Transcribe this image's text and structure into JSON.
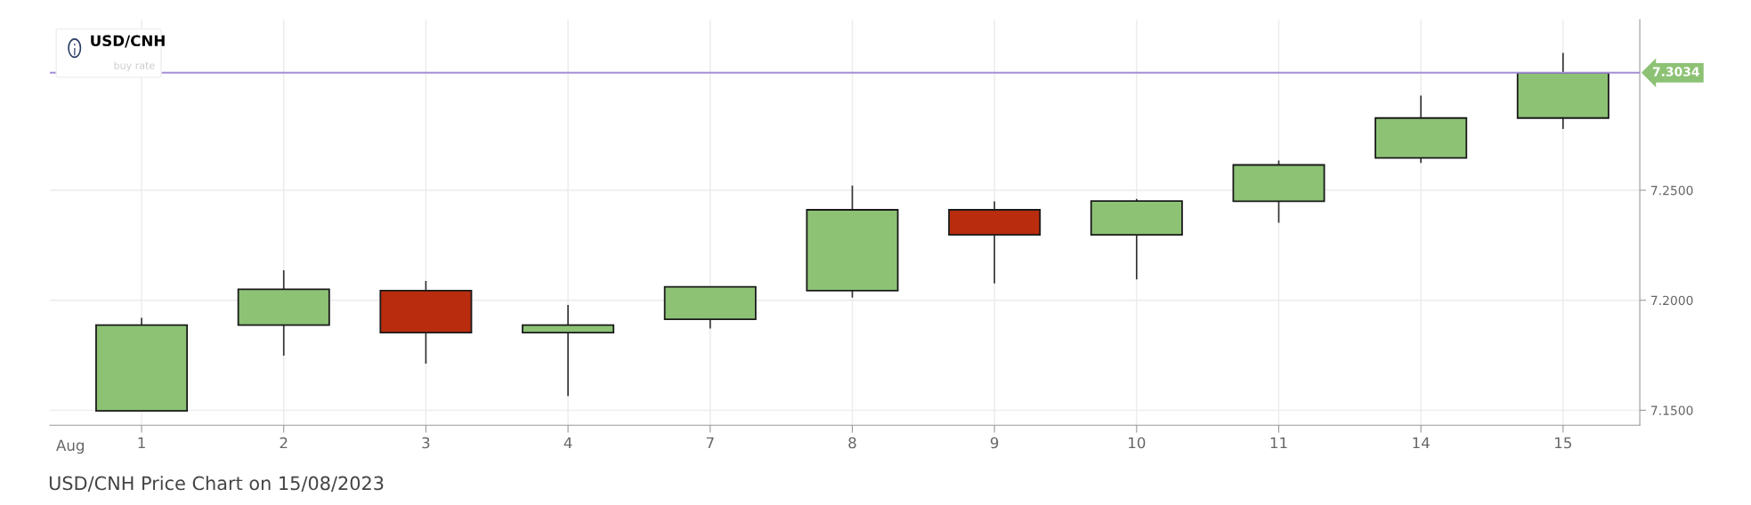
{
  "chart_data": {
    "type": "candlestick",
    "title": "USD/CNH",
    "subtitle": "buy rate",
    "categories": [
      "1",
      "2",
      "3",
      "4",
      "7",
      "8",
      "9",
      "10",
      "11",
      "14",
      "15"
    ],
    "ohlc": [
      [
        7.1497,
        7.192,
        7.1497,
        7.1887
      ],
      [
        7.1887,
        7.2136,
        7.1748,
        7.205
      ],
      [
        7.2044,
        7.2088,
        7.1712,
        7.1853
      ],
      [
        7.1853,
        7.1979,
        7.1564,
        7.1887
      ],
      [
        7.1913,
        7.2061,
        7.1871,
        7.2061
      ],
      [
        7.2044,
        7.2521,
        7.2012,
        7.2411
      ],
      [
        7.2411,
        7.2449,
        7.2077,
        7.2297
      ],
      [
        7.2297,
        7.246,
        7.2095,
        7.2451
      ],
      [
        7.245,
        7.2635,
        7.2352,
        7.2615
      ],
      [
        7.2647,
        7.293,
        7.2624,
        7.2828
      ],
      [
        7.2828,
        7.3124,
        7.2779,
        7.3034
      ]
    ],
    "colors": [
      "#8dc275",
      "#8dc275",
      "#b92c0e",
      "#8dc275",
      "#8dc275",
      "#8dc275",
      "#b92c0e",
      "#8dc275",
      "#8dc275",
      "#8dc275",
      "#8dc275"
    ],
    "ylim": [
      7.1432,
      7.3275
    ],
    "yticks": [
      {
        "value": 7.15,
        "label": "7.1500"
      },
      {
        "value": 7.2,
        "label": "7.2000"
      },
      {
        "value": 7.25,
        "label": "7.2500"
      }
    ],
    "ref_lines": [
      {
        "axis": "y",
        "value": 7.3034,
        "label": "7.3034",
        "color": "#a58fd8"
      }
    ],
    "annotations": [
      "Aug",
      "USD/CNH Price Chart on 15/08/2023"
    ],
    "grid": true
  }
}
